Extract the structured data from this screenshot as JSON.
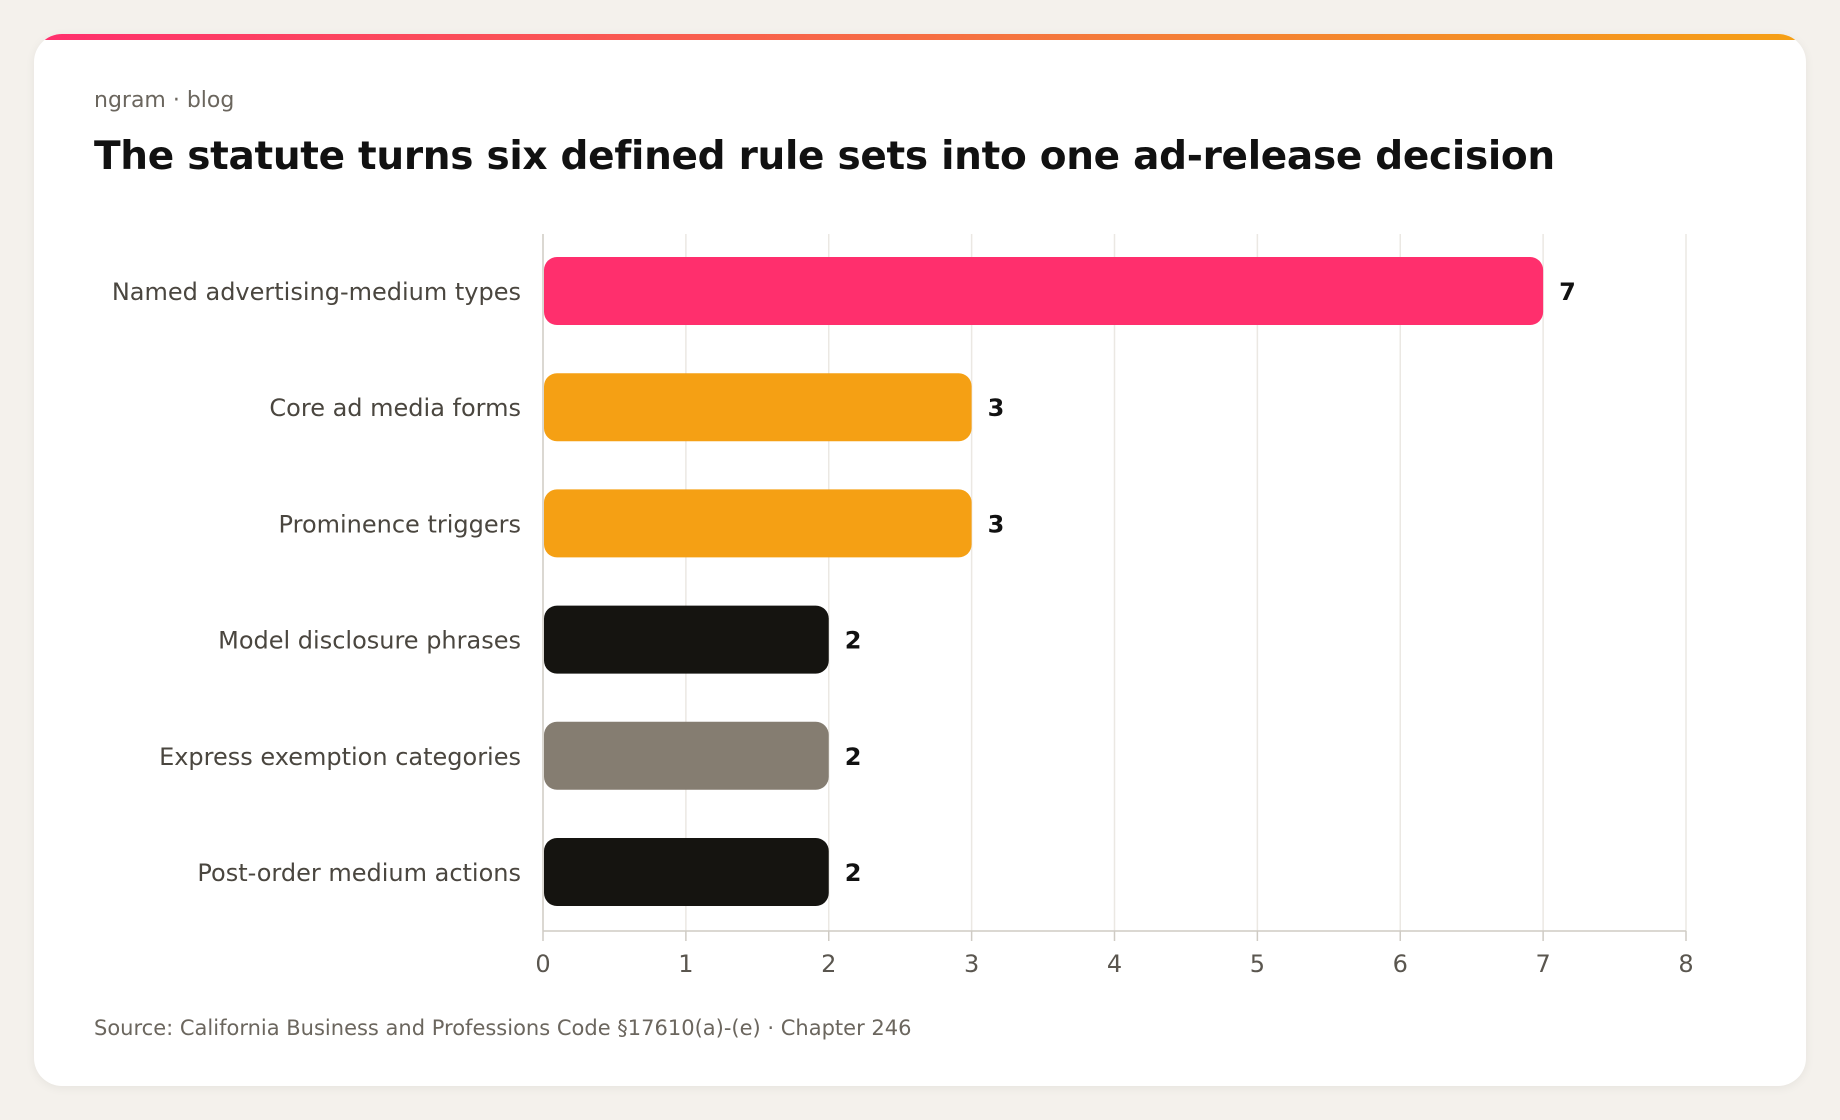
{
  "header": {
    "eyebrow": "ngram · blog",
    "title": "The statute turns six defined rule sets into one ad-release decision"
  },
  "footer": {
    "source": "Source: California Business and Professions Code §17610(a)-(e) · Chapter 246"
  },
  "colors": {
    "accent_pink": "#ff2f6d",
    "accent_orange": "#f5a014",
    "dark": "#151410",
    "gray": "#857d71",
    "gridline": "#ebe8e3",
    "background": "#f4f1ec"
  },
  "chart_data": {
    "type": "bar",
    "orientation": "horizontal",
    "title": "The statute turns six defined rule sets into one ad-release decision",
    "xlabel": "",
    "ylabel": "",
    "xlim": [
      0,
      8
    ],
    "x_ticks": [
      "0",
      "1",
      "2",
      "3",
      "4",
      "5",
      "6",
      "7",
      "8"
    ],
    "grid": true,
    "legend": "none",
    "categories": [
      "Named advertising-medium types",
      "Core ad media forms",
      "Prominence triggers",
      "Model disclosure phrases",
      "Express exemption categories",
      "Post-order medium actions"
    ],
    "values": [
      7,
      3,
      3,
      2,
      2,
      2
    ],
    "bar_colors": [
      "#ff2f6d",
      "#f5a014",
      "#f5a014",
      "#151410",
      "#857d71",
      "#151410"
    ]
  }
}
